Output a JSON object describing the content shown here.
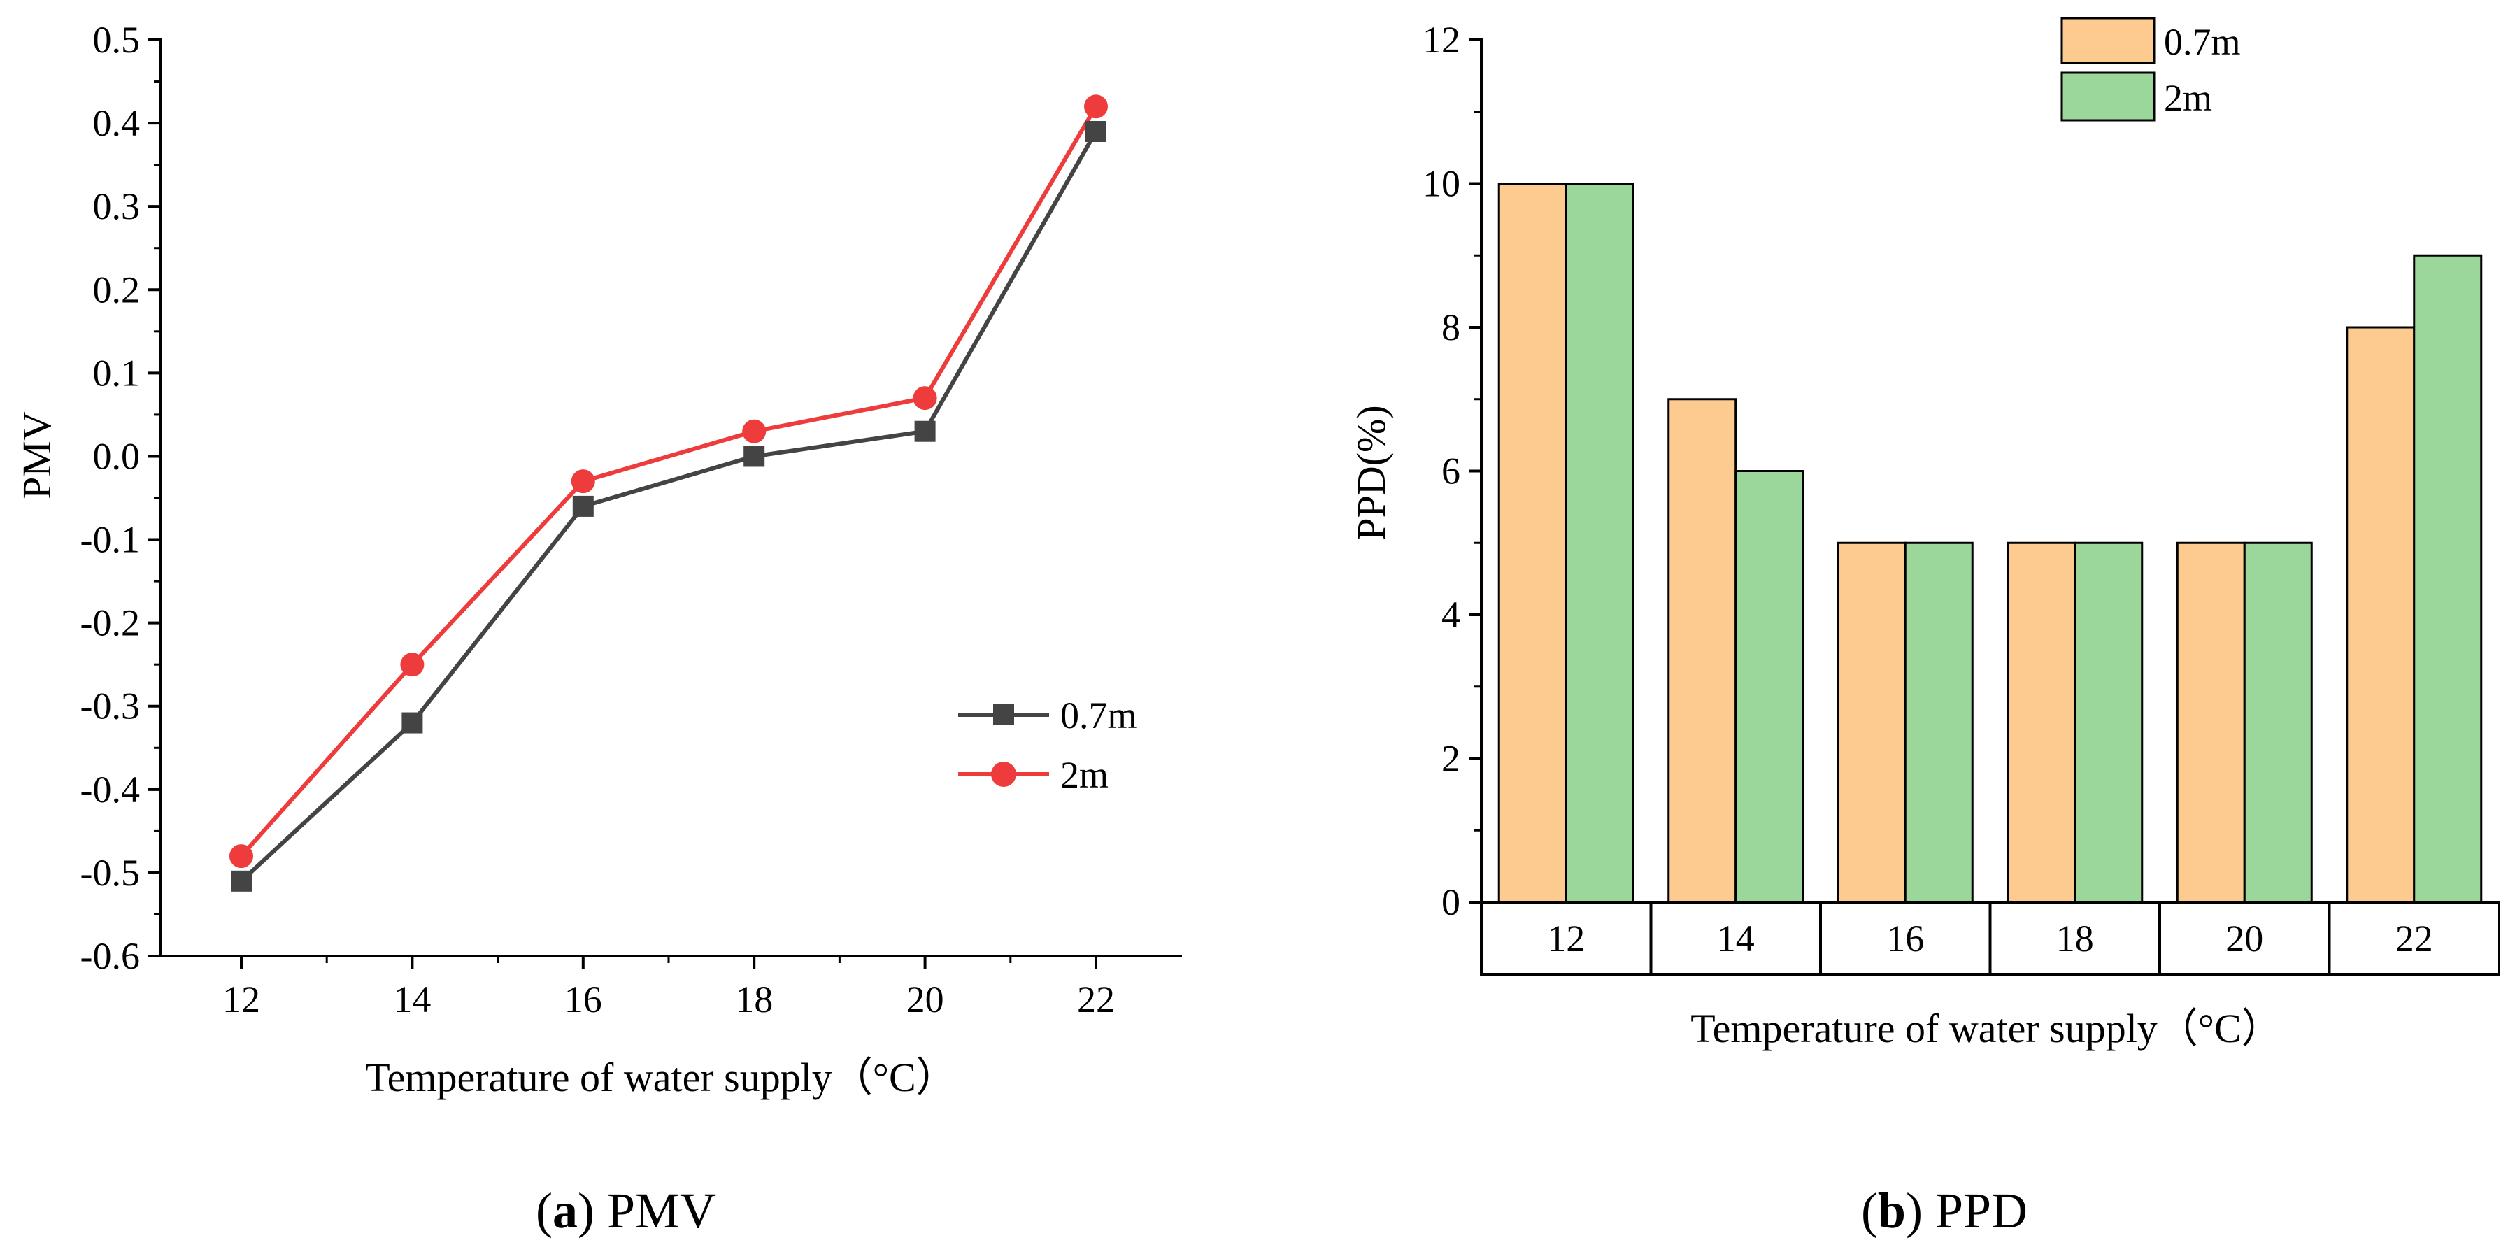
{
  "chart_data": [
    {
      "type": "line",
      "panel_caption_label": "a",
      "panel_caption_text": "PMV",
      "xlabel": "Temperature of water supply（°C）",
      "ylabel": "PMV",
      "x": [
        12,
        14,
        16,
        18,
        20,
        22
      ],
      "xticks": [
        "12",
        "14",
        "16",
        "18",
        "20",
        "22"
      ],
      "ylim": [
        -0.6,
        0.5
      ],
      "yticks": [
        "-0.6",
        "-0.5",
        "-0.4",
        "-0.3",
        "-0.2",
        "-0.1",
        "0.0",
        "0.1",
        "0.2",
        "0.3",
        "0.4",
        "0.5"
      ],
      "grid": false,
      "legend_position": "lower-right",
      "series": [
        {
          "name": "0.7m",
          "marker": "square",
          "color": "#444444",
          "values": [
            -0.51,
            -0.32,
            -0.06,
            0.0,
            0.03,
            0.39
          ]
        },
        {
          "name": "2m",
          "marker": "circle",
          "color": "#ee3b3b",
          "values": [
            -0.48,
            -0.25,
            -0.03,
            0.03,
            0.07,
            0.42
          ]
        }
      ]
    },
    {
      "type": "bar",
      "panel_caption_label": "b",
      "panel_caption_text": "PPD",
      "xlabel": "Temperature of water supply（°C）",
      "ylabel": "PPD(%)",
      "categories": [
        "12",
        "14",
        "16",
        "18",
        "20",
        "22"
      ],
      "ylim": [
        0,
        12
      ],
      "yticks": [
        "0",
        "2",
        "4",
        "6",
        "8",
        "10",
        "12"
      ],
      "grid": false,
      "legend_position": "top-center",
      "series": [
        {
          "name": "0.7m",
          "color": "#fdcb90",
          "values": [
            10,
            7,
            5,
            5,
            5,
            8
          ]
        },
        {
          "name": "2m",
          "color": "#9bd69b",
          "values": [
            10,
            6,
            5,
            5,
            5,
            9
          ]
        }
      ]
    }
  ]
}
